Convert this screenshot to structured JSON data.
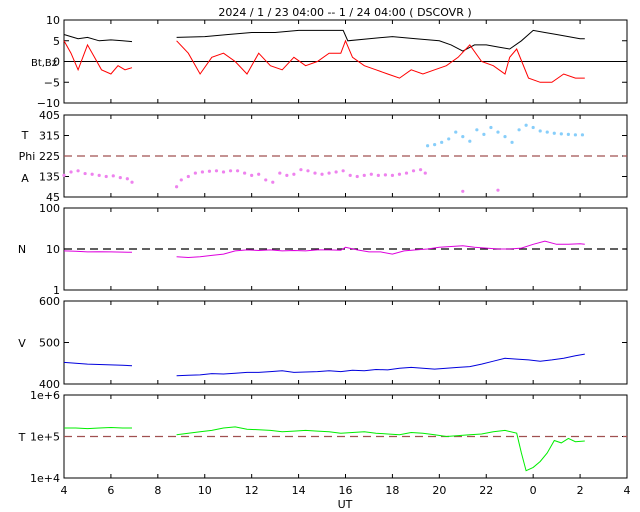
{
  "title": "2024 /   1 / 23   04:00 --   1 / 24   04:00 ( DSCOVR )",
  "x_axis": {
    "label": "UT",
    "ticks": [
      "4",
      "6",
      "8",
      "10",
      "12",
      "14",
      "16",
      "18",
      "20",
      "22",
      "0",
      "2",
      "4"
    ]
  },
  "colors": {
    "bt": "#000000",
    "bz": "#ff0000",
    "temp_phi": "#87cefa",
    "angle": "#ee82ee",
    "density": "#dd00dd",
    "speed": "#0000dd",
    "temperature": "#00ee00",
    "reference_dashed": "#a05050"
  },
  "chart_data": [
    {
      "type": "line",
      "panel": "magnetic-field",
      "ylabel": "Bt,Bz",
      "ylim": [
        -10,
        10
      ],
      "yticks": [
        "10",
        "5",
        "0",
        "−5",
        "−10"
      ],
      "series": [
        {
          "key": "bt",
          "color": "#000000",
          "x": [
            4.0,
            4.3,
            4.6,
            5.0,
            5.5,
            6.0,
            6.5,
            6.9,
            8.8,
            10.0,
            11.0,
            12.0,
            13.0,
            14.0,
            15.0,
            15.9,
            16.1,
            17.0,
            18.0,
            19.0,
            20.0,
            20.5,
            21.0,
            21.5,
            22.0,
            22.5,
            23.0,
            23.5,
            24.0,
            24.5,
            25.0,
            25.5,
            26.0,
            26.2
          ],
          "y": [
            6.5,
            6.0,
            5.5,
            5.8,
            5.0,
            5.2,
            5.0,
            4.8,
            5.8,
            6.0,
            6.5,
            7.0,
            7.0,
            7.5,
            7.5,
            7.5,
            5.0,
            5.5,
            6.0,
            5.5,
            5.0,
            4.0,
            2.5,
            4.0,
            4.0,
            3.5,
            3.0,
            5.0,
            7.5,
            7.0,
            6.5,
            6.0,
            5.5,
            5.5
          ]
        },
        {
          "key": "bz",
          "color": "#ff0000",
          "x": [
            4.0,
            4.3,
            4.6,
            5.0,
            5.3,
            5.6,
            6.0,
            6.3,
            6.6,
            6.9,
            8.8,
            9.3,
            9.8,
            10.3,
            10.8,
            11.3,
            11.8,
            12.3,
            12.8,
            13.3,
            13.8,
            14.3,
            14.8,
            15.3,
            15.8,
            16.0,
            16.3,
            16.8,
            17.3,
            17.8,
            18.3,
            18.8,
            19.3,
            19.8,
            20.3,
            20.8,
            21.3,
            21.8,
            22.3,
            22.8,
            23.0,
            23.3,
            23.8,
            24.3,
            24.8,
            25.3,
            25.8,
            26.2
          ],
          "y": [
            5.0,
            2.0,
            -2.0,
            4.0,
            1.0,
            -2.0,
            -3.0,
            -1.0,
            -2.0,
            -1.5,
            5.0,
            2.0,
            -3.0,
            1.0,
            2.0,
            0.0,
            -3.0,
            2.0,
            -1.0,
            -2.0,
            1.0,
            -1.0,
            0.0,
            2.0,
            2.0,
            5.0,
            1.0,
            -1.0,
            -2.0,
            -3.0,
            -4.0,
            -2.0,
            -3.0,
            -2.0,
            -1.0,
            1.0,
            4.0,
            0.0,
            -1.0,
            -3.0,
            1.0,
            3.0,
            -4.0,
            -5.0,
            -5.0,
            -3.0,
            -4.0,
            -4.0
          ]
        }
      ]
    },
    {
      "type": "scatter",
      "panel": "angles",
      "ylabels": [
        "T",
        "Phi",
        "A"
      ],
      "ylim": [
        45,
        405
      ],
      "yticks": [
        "405",
        "315",
        "225",
        "135",
        "45"
      ],
      "reference_line": 225,
      "series": [
        {
          "key": "temp_phi",
          "color": "#87cefa",
          "x": [
            19.5,
            19.8,
            20.1,
            20.4,
            20.7,
            21.0,
            21.3,
            21.6,
            21.9,
            22.2,
            22.5,
            22.8,
            23.1,
            23.4,
            23.7,
            24.0,
            24.3,
            24.6,
            24.9,
            25.2,
            25.5,
            25.8,
            26.1
          ],
          "y": [
            270,
            275,
            285,
            300,
            330,
            310,
            290,
            340,
            320,
            350,
            330,
            310,
            285,
            340,
            360,
            350,
            335,
            330,
            325,
            322,
            320,
            318,
            318
          ]
        },
        {
          "key": "angle",
          "color": "#ee82ee",
          "x": [
            4.0,
            4.3,
            4.6,
            4.9,
            5.2,
            5.5,
            5.8,
            6.1,
            6.4,
            6.7,
            6.9,
            8.8,
            9.0,
            9.3,
            9.6,
            9.9,
            10.2,
            10.5,
            10.8,
            11.1,
            11.4,
            11.7,
            12.0,
            12.3,
            12.6,
            12.9,
            13.2,
            13.5,
            13.8,
            14.1,
            14.4,
            14.7,
            15.0,
            15.3,
            15.6,
            15.9,
            16.2,
            16.5,
            16.8,
            17.1,
            17.4,
            17.7,
            18.0,
            18.3,
            18.6,
            18.9,
            19.2,
            19.4,
            21.0,
            22.5
          ],
          "y": [
            140,
            155,
            160,
            148,
            145,
            140,
            135,
            138,
            130,
            125,
            110,
            90,
            120,
            135,
            150,
            155,
            158,
            160,
            155,
            160,
            160,
            150,
            140,
            145,
            120,
            110,
            150,
            140,
            145,
            165,
            160,
            150,
            145,
            150,
            155,
            160,
            140,
            135,
            140,
            145,
            140,
            142,
            140,
            145,
            150,
            160,
            165,
            150,
            70,
            75
          ]
        }
      ]
    },
    {
      "type": "line",
      "panel": "density",
      "ylabel": "N",
      "scale": "log",
      "ylim": [
        1,
        100
      ],
      "yticks": [
        "100",
        "10",
        "1"
      ],
      "reference_line": 10,
      "series": [
        {
          "key": "density",
          "color": "#dd00dd",
          "x": [
            4.0,
            4.5,
            5.0,
            5.5,
            6.0,
            6.5,
            6.9,
            8.8,
            9.3,
            9.8,
            10.3,
            10.8,
            11.3,
            11.8,
            12.3,
            12.8,
            13.3,
            13.8,
            14.3,
            14.8,
            15.3,
            15.8,
            16.0,
            16.5,
            17.0,
            17.5,
            18.0,
            18.5,
            19.0,
            19.5,
            20.0,
            20.5,
            21.0,
            21.5,
            22.0,
            22.5,
            23.0,
            23.5,
            24.0,
            24.5,
            25.0,
            25.5,
            26.0,
            26.2
          ],
          "y": [
            9.0,
            8.8,
            8.5,
            8.6,
            8.5,
            8.4,
            8.3,
            6.5,
            6.2,
            6.5,
            7.0,
            7.5,
            9.0,
            9.5,
            9.2,
            9.5,
            9.0,
            9.2,
            9.0,
            9.5,
            9.5,
            9.3,
            11.0,
            9.5,
            8.5,
            8.5,
            7.5,
            9.0,
            9.5,
            10.0,
            11.0,
            11.5,
            12.0,
            11.0,
            10.5,
            10.0,
            10.0,
            10.5,
            13.0,
            15.5,
            13.0,
            13.0,
            13.5,
            13.0
          ]
        }
      ]
    },
    {
      "type": "line",
      "panel": "speed",
      "ylabel": "V",
      "ylim": [
        400,
        600
      ],
      "yticks": [
        "600",
        "500",
        "400"
      ],
      "series": [
        {
          "key": "speed",
          "color": "#0000dd",
          "x": [
            4.0,
            4.5,
            5.0,
            5.5,
            6.0,
            6.5,
            6.9,
            8.8,
            9.3,
            9.8,
            10.3,
            10.8,
            11.3,
            11.8,
            12.3,
            12.8,
            13.3,
            13.8,
            14.3,
            14.8,
            15.3,
            15.8,
            16.3,
            16.8,
            17.3,
            17.8,
            18.3,
            18.8,
            19.3,
            19.8,
            20.3,
            20.8,
            21.3,
            21.8,
            22.3,
            22.8,
            23.3,
            23.8,
            24.3,
            24.8,
            25.3,
            25.8,
            26.2
          ],
          "y": [
            452,
            450,
            448,
            447,
            446,
            445,
            444,
            420,
            421,
            422,
            425,
            424,
            426,
            428,
            428,
            430,
            432,
            428,
            429,
            430,
            432,
            430,
            433,
            432,
            435,
            434,
            438,
            440,
            438,
            436,
            438,
            440,
            442,
            448,
            455,
            462,
            460,
            458,
            455,
            458,
            462,
            468,
            472
          ]
        }
      ]
    },
    {
      "type": "line",
      "panel": "temperature",
      "ylabel": "T",
      "scale": "log",
      "ylim": [
        10000,
        1000000
      ],
      "yticks": [
        "1e+6",
        "1e+5",
        "1e+4"
      ],
      "reference_line": 100000,
      "series": [
        {
          "key": "temperature",
          "color": "#00ee00",
          "x": [
            4.0,
            4.5,
            5.0,
            5.5,
            6.0,
            6.5,
            6.9,
            8.8,
            9.3,
            9.8,
            10.3,
            10.8,
            11.3,
            11.8,
            12.3,
            12.8,
            13.3,
            13.8,
            14.3,
            14.8,
            15.3,
            15.8,
            16.3,
            16.8,
            17.3,
            17.8,
            18.3,
            18.8,
            19.3,
            19.8,
            20.3,
            20.8,
            21.3,
            21.8,
            22.3,
            22.8,
            23.3,
            23.5,
            23.7,
            24.0,
            24.3,
            24.6,
            24.9,
            25.2,
            25.5,
            25.8,
            26.2
          ],
          "y": [
            160000,
            160000,
            155000,
            160000,
            165000,
            160000,
            160000,
            110000,
            120000,
            130000,
            140000,
            160000,
            170000,
            150000,
            145000,
            140000,
            130000,
            135000,
            140000,
            135000,
            130000,
            120000,
            125000,
            130000,
            120000,
            115000,
            110000,
            125000,
            120000,
            110000,
            100000,
            105000,
            110000,
            115000,
            130000,
            140000,
            120000,
            40000,
            15000,
            18000,
            25000,
            40000,
            80000,
            70000,
            90000,
            75000,
            78000
          ]
        }
      ]
    }
  ]
}
